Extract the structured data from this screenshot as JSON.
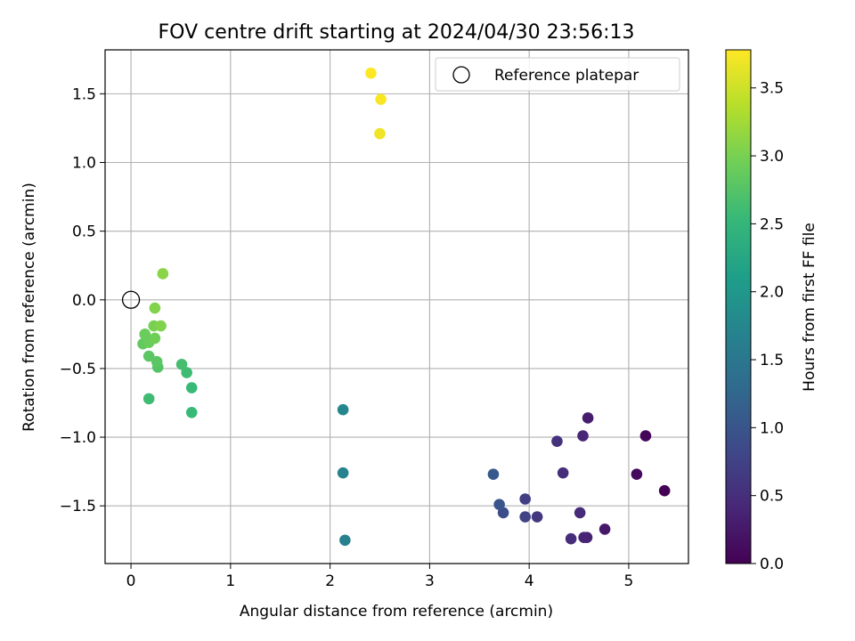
{
  "chart_data": {
    "type": "scatter",
    "title": "FOV centre drift starting at 2024/04/30 23:56:13",
    "xlabel": "Angular distance from reference (arcmin)",
    "ylabel": "Rotation from reference (arcmin)",
    "xlim": [
      -0.26,
      5.6
    ],
    "ylim": [
      -1.92,
      1.82
    ],
    "x_ticks": [
      "0",
      "1",
      "2",
      "3",
      "4",
      "5"
    ],
    "y_ticks": [
      "−1.5",
      "−1.0",
      "−0.5",
      "0.0",
      "0.5",
      "1.0",
      "1.5"
    ],
    "grid": true,
    "legend": {
      "placement": "top-right",
      "entries": [
        {
          "label": "Reference platepar",
          "marker": "open-circle"
        }
      ]
    },
    "reference_point": {
      "x": 0,
      "y": 0
    },
    "colorbar": {
      "label": "Hours from first FF file",
      "colormap": "viridis",
      "range": [
        0,
        3.78
      ],
      "ticks": [
        "0.0",
        "0.5",
        "1.0",
        "1.5",
        "2.0",
        "2.5",
        "3.0",
        "3.5"
      ]
    },
    "colormap_stops": [
      "#440154",
      "#482878",
      "#3e4989",
      "#31688e",
      "#26828e",
      "#1f9e89",
      "#35b779",
      "#6ece58",
      "#b5de2b",
      "#fde725"
    ],
    "points": [
      {
        "x": 5.36,
        "y": -1.39,
        "hours": 0.0
      },
      {
        "x": 5.17,
        "y": -0.99,
        "hours": 0.05
      },
      {
        "x": 5.08,
        "y": -1.27,
        "hours": 0.1
      },
      {
        "x": 4.76,
        "y": -1.67,
        "hours": 0.25
      },
      {
        "x": 4.59,
        "y": -0.86,
        "hours": 0.3
      },
      {
        "x": 4.58,
        "y": -1.73,
        "hours": 0.35
      },
      {
        "x": 4.55,
        "y": -1.73,
        "hours": 0.38
      },
      {
        "x": 4.54,
        "y": -0.99,
        "hours": 0.4
      },
      {
        "x": 4.51,
        "y": -1.55,
        "hours": 0.45
      },
      {
        "x": 4.42,
        "y": -1.74,
        "hours": 0.5
      },
      {
        "x": 4.34,
        "y": -1.26,
        "hours": 0.5
      },
      {
        "x": 4.28,
        "y": -1.03,
        "hours": 0.55
      },
      {
        "x": 4.08,
        "y": -1.58,
        "hours": 0.6
      },
      {
        "x": 3.96,
        "y": -1.45,
        "hours": 0.7
      },
      {
        "x": 3.96,
        "y": -1.58,
        "hours": 0.75
      },
      {
        "x": 3.74,
        "y": -1.55,
        "hours": 0.9
      },
      {
        "x": 3.7,
        "y": -1.49,
        "hours": 1.0
      },
      {
        "x": 3.64,
        "y": -1.27,
        "hours": 1.05
      },
      {
        "x": 2.15,
        "y": -1.75,
        "hours": 1.65
      },
      {
        "x": 2.13,
        "y": -1.26,
        "hours": 1.7
      },
      {
        "x": 2.13,
        "y": -0.8,
        "hours": 1.75
      },
      {
        "x": 0.61,
        "y": -0.82,
        "hours": 2.55
      },
      {
        "x": 0.61,
        "y": -0.64,
        "hours": 2.55
      },
      {
        "x": 0.56,
        "y": -0.53,
        "hours": 2.6
      },
      {
        "x": 0.51,
        "y": -0.47,
        "hours": 2.65
      },
      {
        "x": 0.18,
        "y": -0.72,
        "hours": 2.6
      },
      {
        "x": 0.27,
        "y": -0.49,
        "hours": 2.75
      },
      {
        "x": 0.26,
        "y": -0.45,
        "hours": 2.8
      },
      {
        "x": 0.18,
        "y": -0.41,
        "hours": 2.8
      },
      {
        "x": 0.12,
        "y": -0.32,
        "hours": 2.85
      },
      {
        "x": 0.18,
        "y": -0.31,
        "hours": 2.9
      },
      {
        "x": 0.24,
        "y": -0.28,
        "hours": 2.95
      },
      {
        "x": 0.14,
        "y": -0.25,
        "hours": 2.9
      },
      {
        "x": 0.23,
        "y": -0.19,
        "hours": 3.0
      },
      {
        "x": 0.3,
        "y": -0.19,
        "hours": 3.05
      },
      {
        "x": 0.24,
        "y": -0.06,
        "hours": 3.05
      },
      {
        "x": 0.32,
        "y": 0.19,
        "hours": 3.1
      },
      {
        "x": 2.5,
        "y": 1.21,
        "hours": 3.7
      },
      {
        "x": 2.51,
        "y": 1.46,
        "hours": 3.75
      },
      {
        "x": 2.41,
        "y": 1.65,
        "hours": 3.78
      }
    ]
  }
}
